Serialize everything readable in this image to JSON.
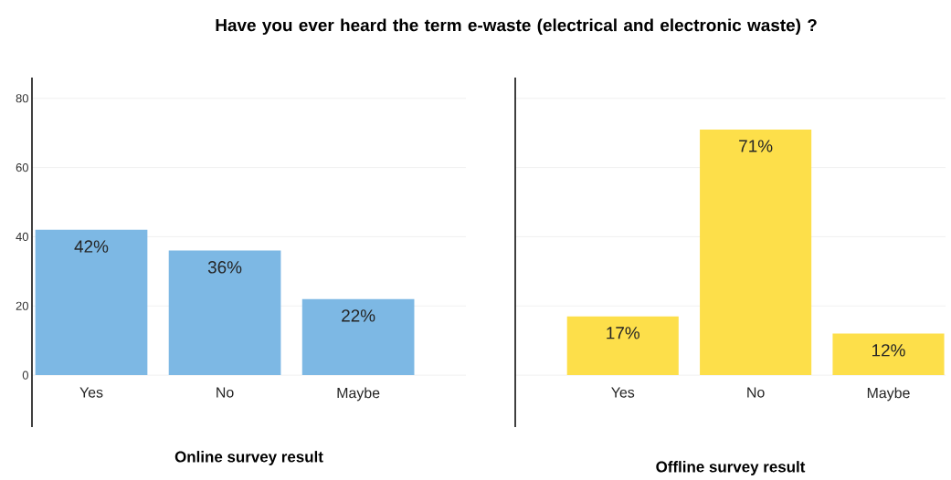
{
  "chart_data": [
    {
      "type": "bar",
      "title": "Have you ever heard the term e-waste (electrical and electronic waste) ?",
      "xlabel": "Online survey result",
      "categories": [
        "Yes",
        "No",
        "Maybe"
      ],
      "values": [
        42,
        36,
        22
      ],
      "value_labels": [
        "42%",
        "36%",
        "22%"
      ],
      "color": "#7db8e4",
      "ylim": [
        -15,
        86
      ],
      "yticks": [
        0,
        20,
        40,
        60,
        80
      ],
      "grid": "y"
    },
    {
      "type": "bar",
      "xlabel": "Offline survey result",
      "categories": [
        "Yes",
        "No",
        "Maybe"
      ],
      "values": [
        17,
        71,
        12
      ],
      "value_labels": [
        "17%",
        "71%",
        "12%"
      ],
      "color": "#fddf4a",
      "ylim": [
        -15,
        86
      ],
      "yticks": [
        0,
        20,
        40,
        60,
        80
      ],
      "grid": "y",
      "tick_labels": "x"
    }
  ]
}
